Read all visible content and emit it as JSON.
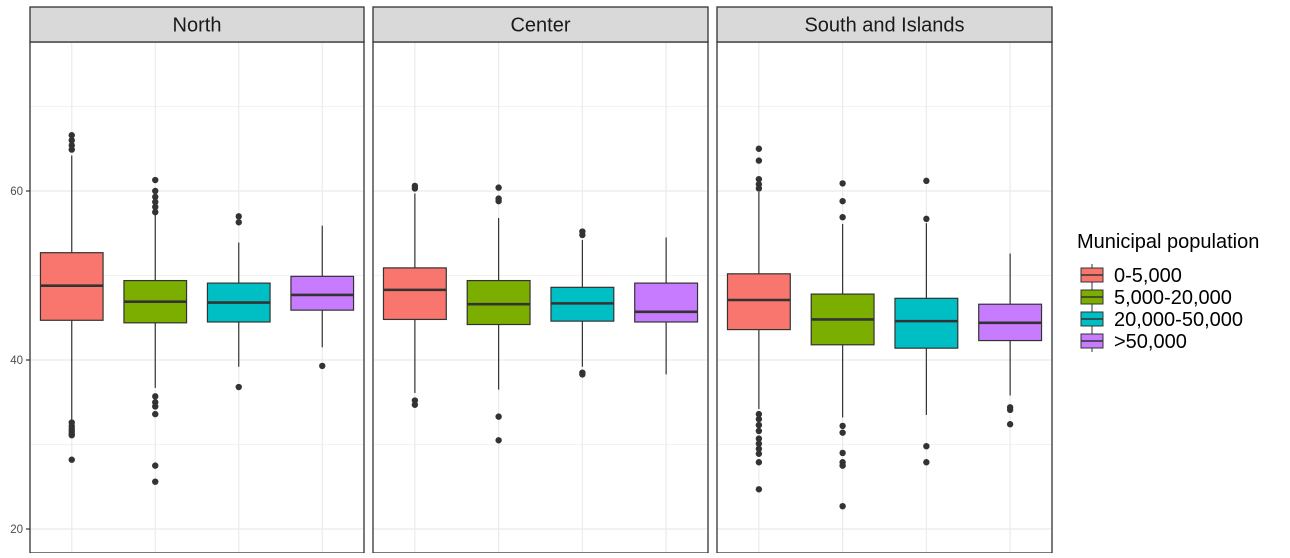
{
  "chart_data": {
    "type": "boxplot",
    "facets": [
      "North",
      "Center",
      "South and Islands"
    ],
    "groups": [
      "0-5,000",
      "5,000-20,000",
      "20,000-50,000",
      ">50,000"
    ],
    "legend": {
      "title": "Municipal population",
      "placement": "right",
      "entries": [
        {
          "label": "0-5,000",
          "color": "#F8766D"
        },
        {
          "label": "5,000-20,000",
          "color": "#7CAE00"
        },
        {
          "label": "20,000-50,000",
          "color": "#00BFC4"
        },
        {
          "label": ">50,000",
          "color": "#C77CFF"
        }
      ]
    },
    "y_axis": {
      "ylim": [
        19,
        79
      ],
      "ticks": [
        20,
        40,
        60
      ],
      "tick_labels": [
        "20",
        "40",
        "60"
      ]
    },
    "grid": true,
    "panels": [
      {
        "facet": "North",
        "boxes": [
          {
            "group": "0-5,000",
            "lower_whisker": 32.8,
            "q1": 44.7,
            "median": 48.8,
            "q3": 52.7,
            "upper_whisker": 64.2,
            "outliers": [
              66.6,
              66.0,
              65.4,
              64.9,
              32.6,
              32.2,
              31.9,
              31.6,
              31.3,
              31.1,
              28.2
            ]
          },
          {
            "group": "5,000-20,000",
            "lower_whisker": 36.7,
            "q1": 44.4,
            "median": 46.9,
            "q3": 49.4,
            "upper_whisker": 57.2,
            "outliers": [
              61.3,
              60.0,
              59.3,
              58.7,
              58.1,
              57.5,
              35.7,
              35.0,
              34.5,
              33.6,
              27.5,
              25.6
            ]
          },
          {
            "group": "20,000-50,000",
            "lower_whisker": 39.2,
            "q1": 44.5,
            "median": 46.8,
            "q3": 49.1,
            "upper_whisker": 53.9,
            "outliers": [
              57.0,
              56.3,
              36.8
            ]
          },
          {
            "group": ">50,000",
            "lower_whisker": 41.5,
            "q1": 45.9,
            "median": 47.7,
            "q3": 49.9,
            "upper_whisker": 55.9,
            "outliers": [
              39.3
            ]
          }
        ]
      },
      {
        "facet": "Center",
        "boxes": [
          {
            "group": "0-5,000",
            "lower_whisker": 36.1,
            "q1": 44.8,
            "median": 48.3,
            "q3": 50.9,
            "upper_whisker": 59.7,
            "outliers": [
              60.6,
              60.3,
              35.2,
              34.7
            ]
          },
          {
            "group": "5,000-20,000",
            "lower_whisker": 36.5,
            "q1": 44.2,
            "median": 46.6,
            "q3": 49.4,
            "upper_whisker": 56.8,
            "outliers": [
              60.4,
              59.1,
              58.8,
              33.3,
              30.5
            ]
          },
          {
            "group": "20,000-50,000",
            "lower_whisker": 39.2,
            "q1": 44.6,
            "median": 46.7,
            "q3": 48.6,
            "upper_whisker": 54.2,
            "outliers": [
              55.2,
              54.8,
              38.5,
              38.3
            ]
          },
          {
            "group": ">50,000",
            "lower_whisker": 38.3,
            "q1": 44.5,
            "median": 45.7,
            "q3": 49.1,
            "upper_whisker": 54.5,
            "outliers": []
          }
        ]
      },
      {
        "facet": "South and Islands",
        "boxes": [
          {
            "group": "0-5,000",
            "lower_whisker": 34.2,
            "q1": 43.6,
            "median": 47.1,
            "q3": 50.2,
            "upper_whisker": 59.9,
            "outliers": [
              65.0,
              63.6,
              61.4,
              60.8,
              60.3,
              33.6,
              33.0,
              32.3,
              31.6,
              30.7,
              30.1,
              29.5,
              28.9,
              27.9,
              24.7
            ]
          },
          {
            "group": "5,000-20,000",
            "lower_whisker": 33.2,
            "q1": 41.8,
            "median": 44.8,
            "q3": 47.8,
            "upper_whisker": 56.1,
            "outliers": [
              60.9,
              58.8,
              56.9,
              32.2,
              31.4,
              29.0,
              27.9,
              27.5,
              22.7
            ]
          },
          {
            "group": "20,000-50,000",
            "lower_whisker": 33.5,
            "q1": 41.4,
            "median": 44.6,
            "q3": 47.3,
            "upper_whisker": 56.2,
            "outliers": [
              61.2,
              56.7,
              29.8,
              27.9
            ]
          },
          {
            "group": ">50,000",
            "lower_whisker": 35.8,
            "q1": 42.3,
            "median": 44.4,
            "q3": 46.6,
            "upper_whisker": 52.6,
            "outliers": [
              34.4,
              34.1,
              32.4
            ]
          }
        ]
      }
    ]
  }
}
